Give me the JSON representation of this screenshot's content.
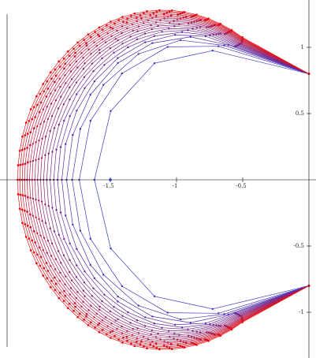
{
  "chart_data": {
    "type": "line",
    "title": "",
    "xlabel": "",
    "ylabel": "",
    "xlim": [
      -2.2,
      0.02
    ],
    "ylim": [
      -1.5,
      1.5
    ],
    "grid": false,
    "legend": "none",
    "axis_style": "axes-through-origin",
    "x_ticks": [
      {
        "value": -1.5,
        "label": "-1.5"
      },
      {
        "value": -1,
        "label": "-1"
      },
      {
        "value": -0.5,
        "label": "-0.5"
      }
    ],
    "y_ticks": [
      {
        "value": 1,
        "label": "1"
      },
      {
        "value": 0.5,
        "label": "0.5"
      },
      {
        "value": -0.5,
        "label": "-0.5"
      },
      {
        "value": -1,
        "label": "-1"
      }
    ],
    "colors": {
      "inner_curves": "#3333cc",
      "outer_curves": "#ee1111",
      "inner_points": "#3333cc",
      "outer_points": "#ee1111",
      "axes": "#000000"
    },
    "family": {
      "curve_count": 20,
      "outer_radius_start": 1.1,
      "outer_radius_end": 1.3,
      "center_x": -0.98,
      "center_y": -0.02,
      "crescent_tip_angle_deg": 38,
      "note_visible": "nested polygonal curves forming a crescent; points of each curve marked with dots"
    },
    "isolated_point": {
      "x": -1.5,
      "y": 0.0
    },
    "series": [
      {
        "values": [
          [
            -1.62,
            0.0
          ],
          [
            -1.43,
            0.78
          ],
          [
            -1.0,
            0.98
          ],
          [
            -0.5,
            1.02
          ],
          [
            0.0,
            0.8
          ],
          [
            -0.5,
            -1.02
          ],
          [
            -1.0,
            -0.98
          ],
          [
            -1.43,
            -0.78
          ],
          [
            -1.62,
            0.0
          ]
        ]
      },
      {
        "values": [
          [
            -2.2,
            0.0
          ],
          [
            -2.12,
            0.32
          ],
          [
            -1.96,
            0.72
          ],
          [
            -1.73,
            0.98
          ],
          [
            -1.45,
            1.15
          ],
          [
            -1.15,
            1.25
          ],
          [
            -0.85,
            1.28
          ],
          [
            -0.55,
            1.2
          ],
          [
            -0.25,
            1.03
          ],
          [
            0.0,
            0.8
          ]
        ]
      }
    ]
  }
}
